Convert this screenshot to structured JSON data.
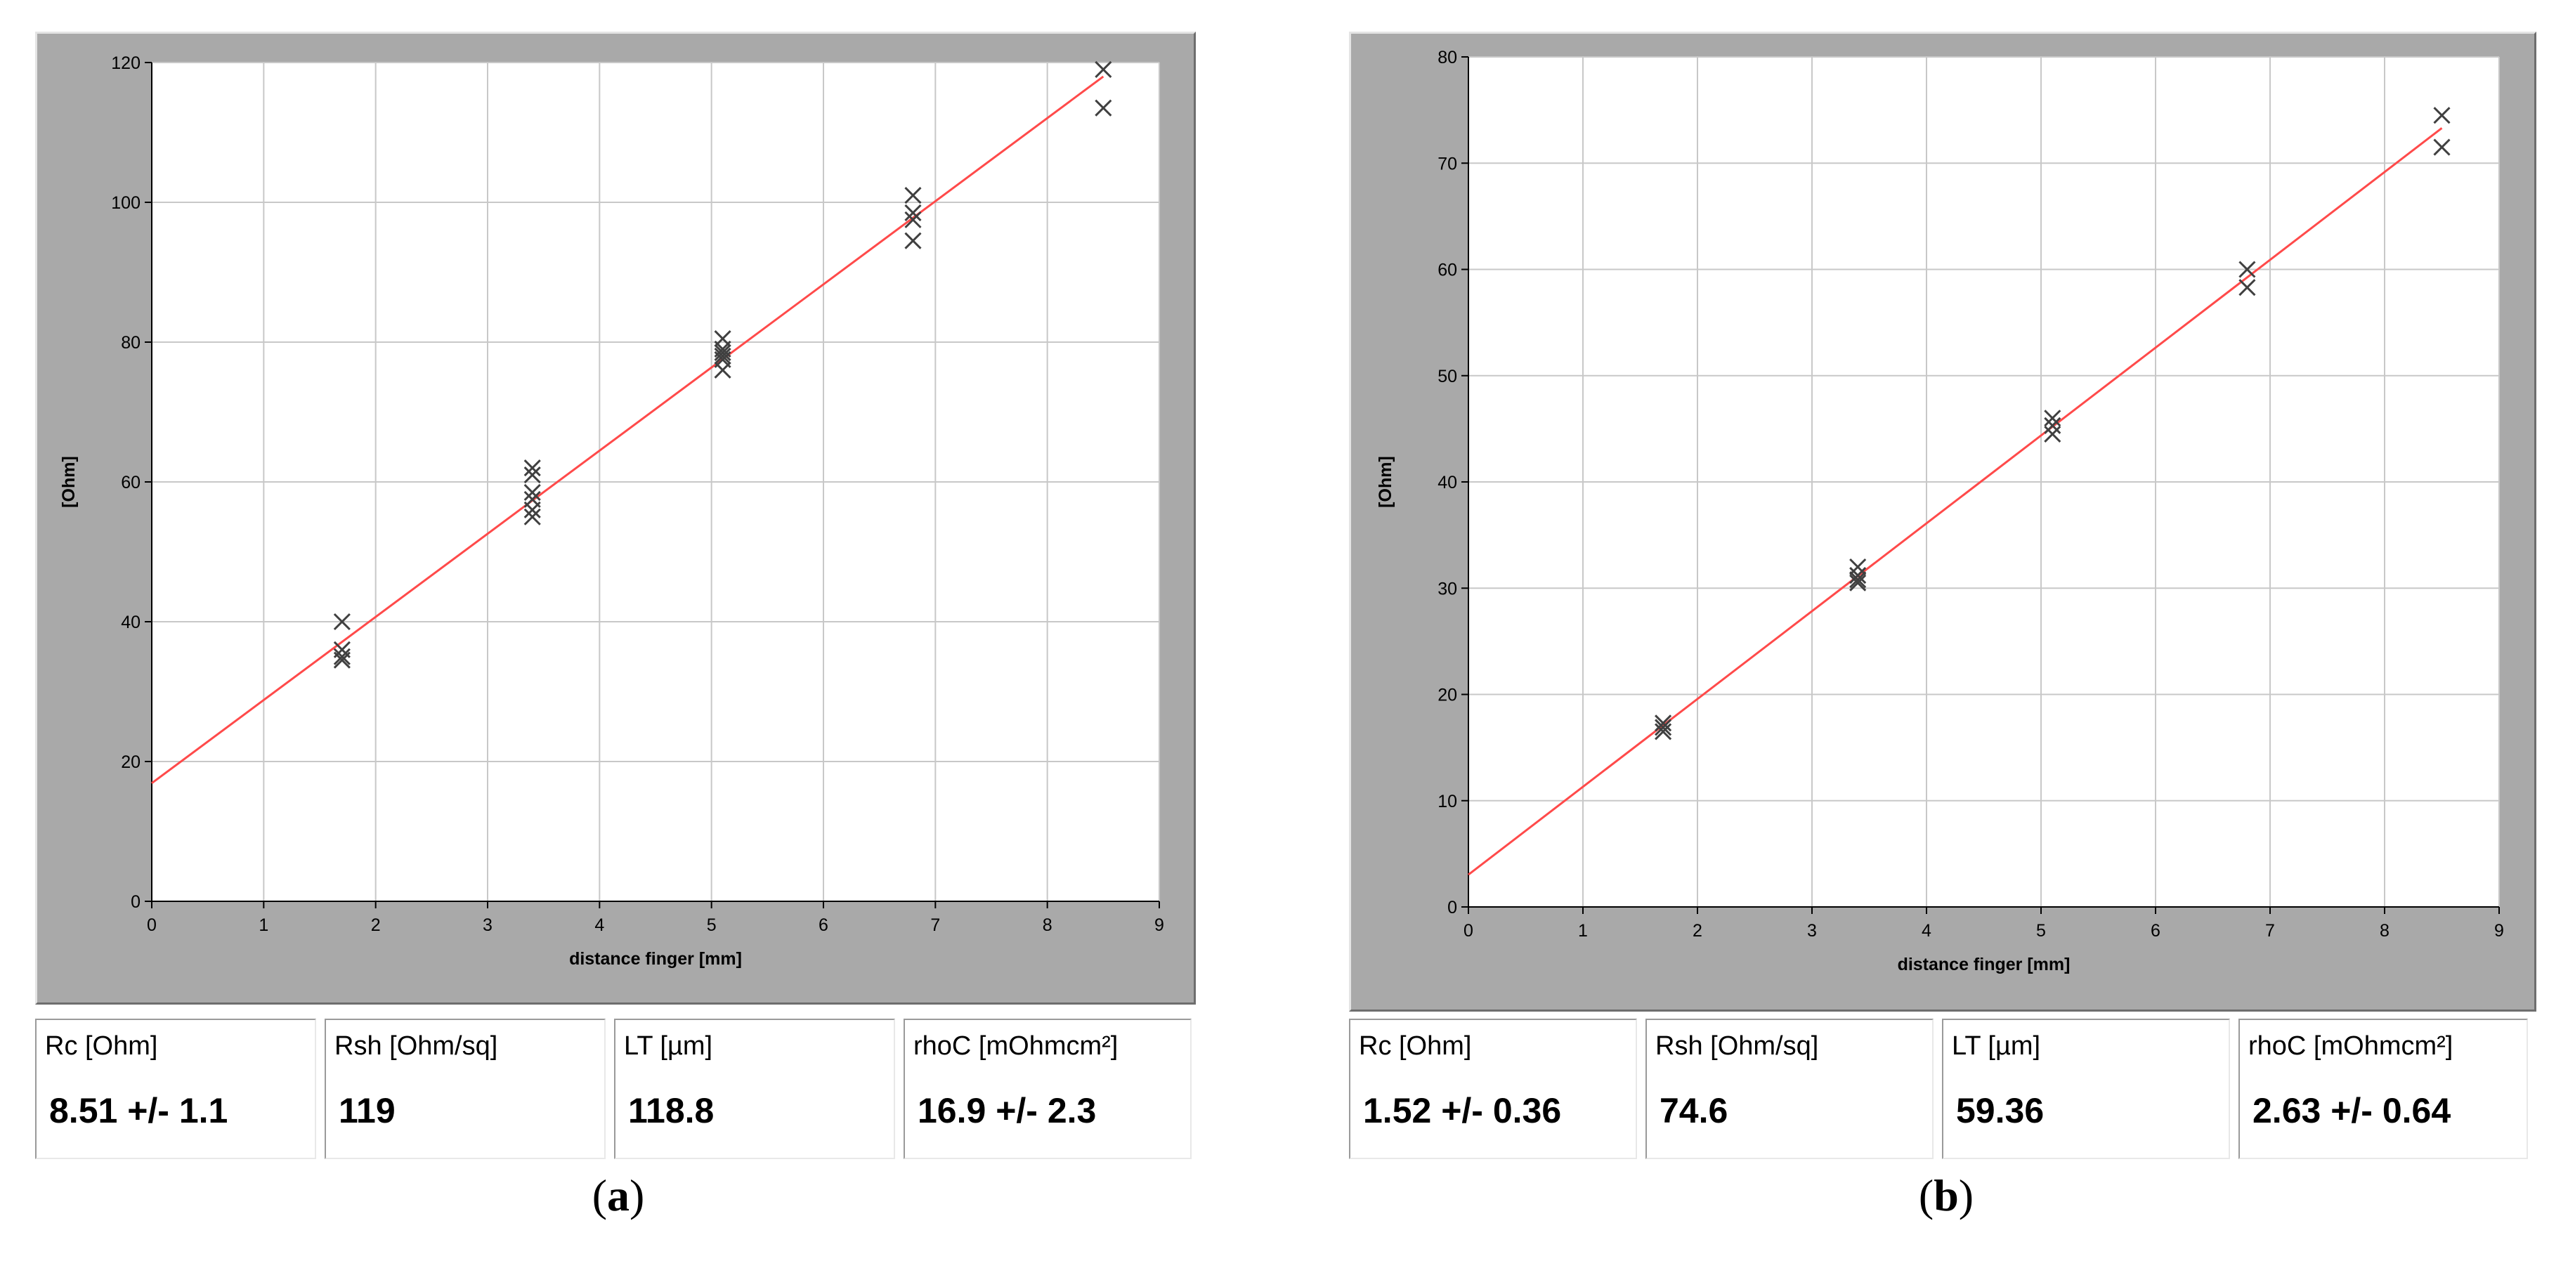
{
  "chart_data": [
    {
      "type": "scatter",
      "caption": "a",
      "xlabel": "distance finger [mm]",
      "ylabel": "[Ohm]",
      "xlim": [
        0,
        9
      ],
      "ylim": [
        0,
        120
      ],
      "xticks": [
        0,
        1,
        2,
        3,
        4,
        5,
        6,
        7,
        8,
        9
      ],
      "yticks": [
        0,
        20,
        40,
        60,
        80,
        100,
        120
      ],
      "grid": true,
      "fit_line": {
        "x": [
          0,
          8.5
        ],
        "y": [
          16.9,
          118
        ],
        "color": "#ff4a4a"
      },
      "points": {
        "x": [
          1.7,
          1.7,
          1.7,
          1.7,
          3.4,
          3.4,
          3.4,
          3.4,
          3.4,
          3.4,
          5.1,
          5.1,
          5.1,
          5.1,
          5.1,
          5.1,
          6.8,
          6.8,
          6.8,
          6.8,
          8.5,
          8.5
        ],
        "y": [
          40,
          36,
          35,
          34.5,
          62,
          61,
          58.5,
          57.5,
          56,
          55,
          80.5,
          79,
          78.5,
          78,
          77.5,
          76,
          101,
          98.5,
          97.5,
          94.5,
          119,
          113.5
        ]
      },
      "stats": [
        {
          "label": "Rc [Ohm]",
          "value": "8.51 +/- 1.1"
        },
        {
          "label": "Rsh [Ohm/sq]",
          "value": "119"
        },
        {
          "label": "LT [µm]",
          "value": "118.8"
        },
        {
          "label": "rhoC [mOhmcm²]",
          "value": "16.9 +/- 2.3"
        }
      ]
    },
    {
      "type": "scatter",
      "caption": "b",
      "xlabel": "distance finger [mm]",
      "ylabel": "[Ohm]",
      "xlim": [
        0,
        9
      ],
      "ylim": [
        0,
        80
      ],
      "xticks": [
        0,
        1,
        2,
        3,
        4,
        5,
        6,
        7,
        8,
        9
      ],
      "yticks": [
        0,
        10,
        20,
        30,
        40,
        50,
        60,
        70,
        80
      ],
      "grid": true,
      "fit_line": {
        "x": [
          0,
          8.5
        ],
        "y": [
          3.04,
          73.3
        ],
        "color": "#ff4a4a"
      },
      "points": {
        "x": [
          1.7,
          1.7,
          1.7,
          3.4,
          3.4,
          3.4,
          3.4,
          5.1,
          5.1,
          5.1,
          6.8,
          6.8,
          8.5,
          8.5
        ],
        "y": [
          17.3,
          16.9,
          16.5,
          32,
          31.2,
          30.8,
          30.5,
          46,
          45.3,
          44.5,
          60,
          58.3,
          74.5,
          71.5
        ]
      },
      "stats": [
        {
          "label": "Rc [Ohm]",
          "value": "1.52 +/- 0.36"
        },
        {
          "label": "Rsh [Ohm/sq]",
          "value": "74.6"
        },
        {
          "label": "LT [µm]",
          "value": "59.36"
        },
        {
          "label": "rhoC [mOhmcm²]",
          "value": "2.63 +/- 0.64"
        }
      ]
    }
  ],
  "colors": {
    "panel_bg": "#a9a9a9",
    "plot_bg": "#ffffff",
    "grid": "#c8c8c8",
    "fit_line": "#ff4a4a",
    "marker": "#404040"
  }
}
